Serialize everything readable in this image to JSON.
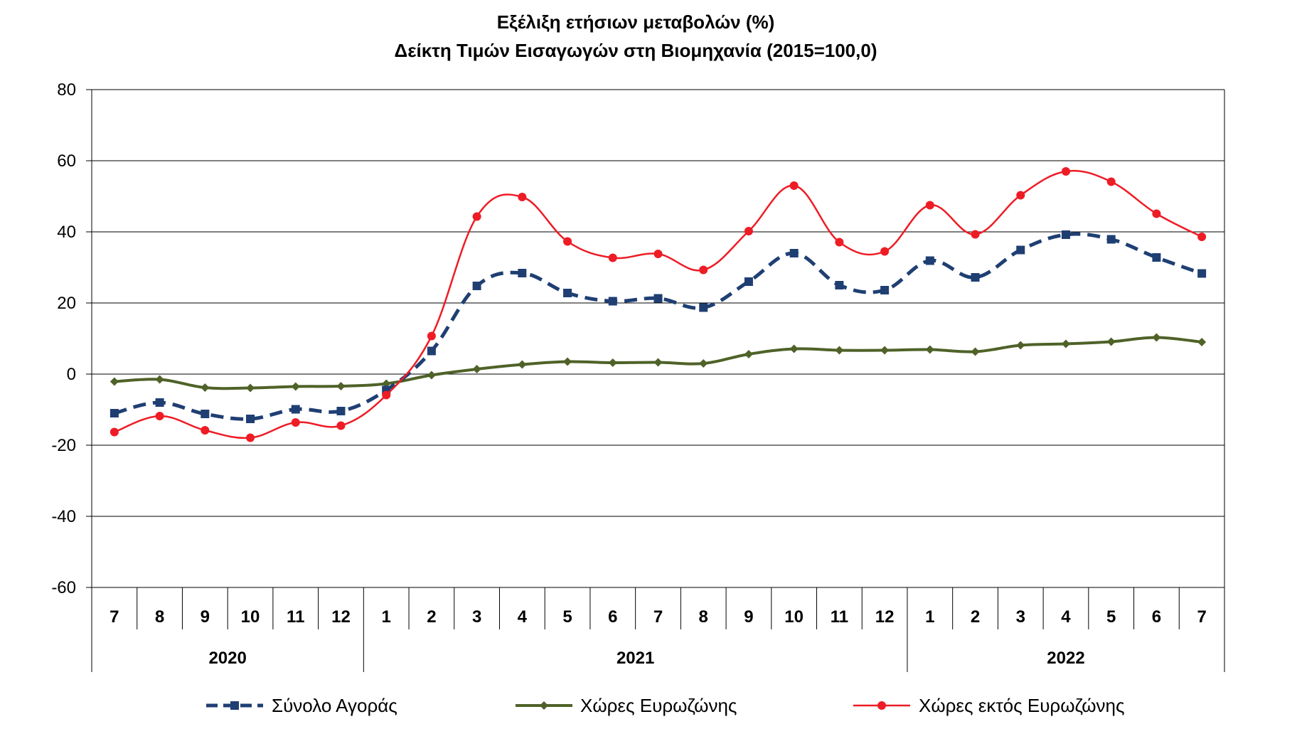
{
  "chart_data": {
    "type": "line",
    "title": "Εξέλιξη ετήσιων μεταβολών (%)",
    "subtitle": "Δείκτη Τιμών Εισαγωγών στη Βιομηχανία (2015=100,0)",
    "categories": [
      "7",
      "8",
      "9",
      "10",
      "11",
      "12",
      "1",
      "2",
      "3",
      "4",
      "5",
      "6",
      "7",
      "8",
      "9",
      "10",
      "11",
      "12",
      "1",
      "2",
      "3",
      "4",
      "5",
      "6",
      "7"
    ],
    "year_groups": [
      {
        "label": "2020",
        "start": 0,
        "end": 5
      },
      {
        "label": "2021",
        "start": 6,
        "end": 17
      },
      {
        "label": "2022",
        "start": 18,
        "end": 24
      }
    ],
    "ylim": [
      -60,
      80
    ],
    "yticks": [
      "80",
      "60",
      "40",
      "20",
      "0",
      "-20",
      "-40",
      "-60"
    ],
    "ytick_values": [
      80,
      60,
      40,
      20,
      0,
      -20,
      -40,
      -60
    ],
    "grid": true,
    "legend_position": "bottom",
    "series": [
      {
        "name": "Σύνολο Αγοράς",
        "color": "#1F3F73",
        "style": "dashed",
        "marker": "square",
        "values": [
          -11.0,
          -8.0,
          -11.2,
          -12.6,
          -9.9,
          -10.4,
          -4.5,
          6.5,
          24.8,
          28.4,
          22.8,
          20.5,
          21.3,
          18.7,
          26.0,
          34.0,
          25.0,
          23.6,
          31.9,
          27.2,
          34.9,
          39.2,
          37.9,
          32.8,
          28.3
        ]
      },
      {
        "name": "Χώρες Ευρωζώνης",
        "color": "#4F6228",
        "style": "solid",
        "marker": "diamond",
        "values": [
          -2.1,
          -1.5,
          -3.8,
          -3.9,
          -3.5,
          -3.4,
          -2.7,
          -0.3,
          1.4,
          2.7,
          3.5,
          3.2,
          3.3,
          3.0,
          5.6,
          7.1,
          6.7,
          6.7,
          6.9,
          6.3,
          8.1,
          8.5,
          9.1,
          10.3,
          9.0
        ]
      },
      {
        "name": "Χώρες εκτός Ευρωζώνης",
        "color": "#EE1C25",
        "style": "solid",
        "marker": "circle",
        "values": [
          -16.3,
          -11.8,
          -15.8,
          -17.9,
          -13.6,
          -14.5,
          -5.9,
          10.7,
          44.3,
          49.8,
          37.3,
          32.7,
          33.8,
          29.3,
          40.2,
          53.0,
          37.1,
          34.5,
          47.5,
          39.3,
          50.3,
          57.0,
          54.1,
          45.1,
          38.6
        ]
      }
    ]
  }
}
